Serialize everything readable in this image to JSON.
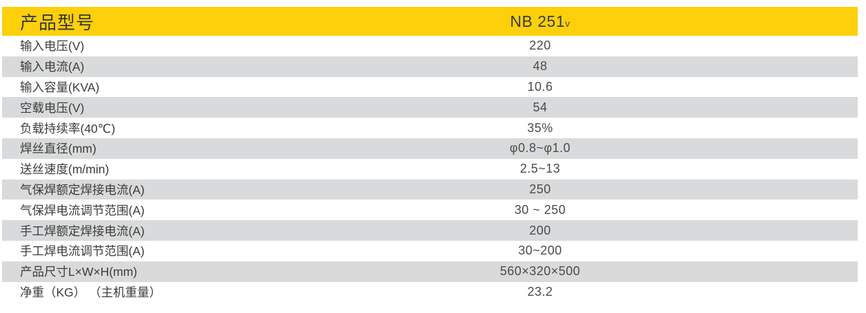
{
  "table": {
    "header": {
      "label": "产品型号",
      "model": "NB 251",
      "model_suffix": "v"
    },
    "rows": [
      {
        "label": "输入电压(V)",
        "value": "220"
      },
      {
        "label": "输入电流(A)",
        "value": "48"
      },
      {
        "label": "输入容量(KVA)",
        "value": "10.6"
      },
      {
        "label": "空载电压(V)",
        "value": "54"
      },
      {
        "label": "负载持续率(40℃)",
        "value": "35%"
      },
      {
        "label": "焊丝直径(mm)",
        "value": "φ0.8~φ1.0"
      },
      {
        "label": "送丝速度(m/min)",
        "value": "2.5~13"
      },
      {
        "label": "气保焊额定焊接电流(A)",
        "value": "250"
      },
      {
        "label": "气保焊电流调节范围(A)",
        "value": "30 ~ 250"
      },
      {
        "label": "手工焊额定焊接电流(A)",
        "value": "200"
      },
      {
        "label": "手工焊电流调节范围(A)",
        "value": "30~200"
      },
      {
        "label": "产品尺寸L×W×H(mm)",
        "value": "560×320×500"
      },
      {
        "label": "净重（KG） （主机重量）",
        "value": "23.2"
      }
    ],
    "colors": {
      "header_bg": "#FDD00B",
      "stripe_bg": "#D9DADB",
      "label_text": "#3C3C3C",
      "value_text": "#4B4B4B"
    }
  }
}
